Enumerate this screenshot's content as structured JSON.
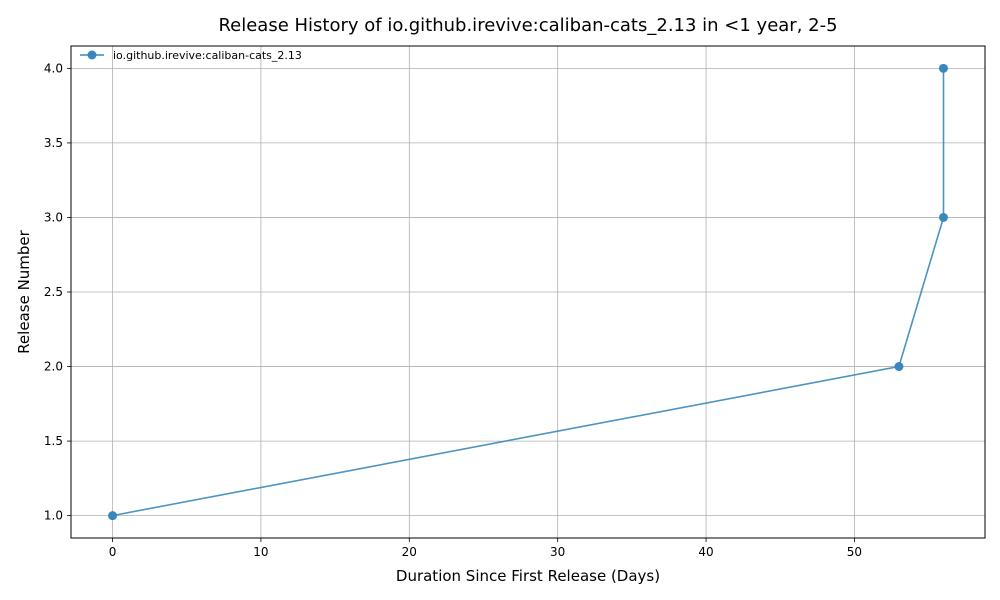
{
  "chart_data": {
    "type": "line",
    "title": "Release History of io.github.irevive:caliban-cats_2.13 in <1 year, 2-5",
    "xlabel": "Duration Since First Release (Days)",
    "ylabel": "Release Number",
    "xlim": [
      -2.8,
      58.8
    ],
    "ylim": [
      0.85,
      4.15
    ],
    "xticks": [
      0,
      10,
      20,
      30,
      40,
      50
    ],
    "yticks": [
      1.0,
      1.5,
      2.0,
      2.5,
      3.0,
      3.5,
      4.0
    ],
    "ytick_format": 1,
    "grid": true,
    "legend_position": "top-left",
    "series": [
      {
        "name": "io.github.irevive:caliban-cats_2.13",
        "color": "#3a87bd",
        "marker": "circle",
        "x": [
          0,
          53,
          56,
          56
        ],
        "y": [
          1,
          2,
          3,
          4
        ]
      }
    ]
  }
}
